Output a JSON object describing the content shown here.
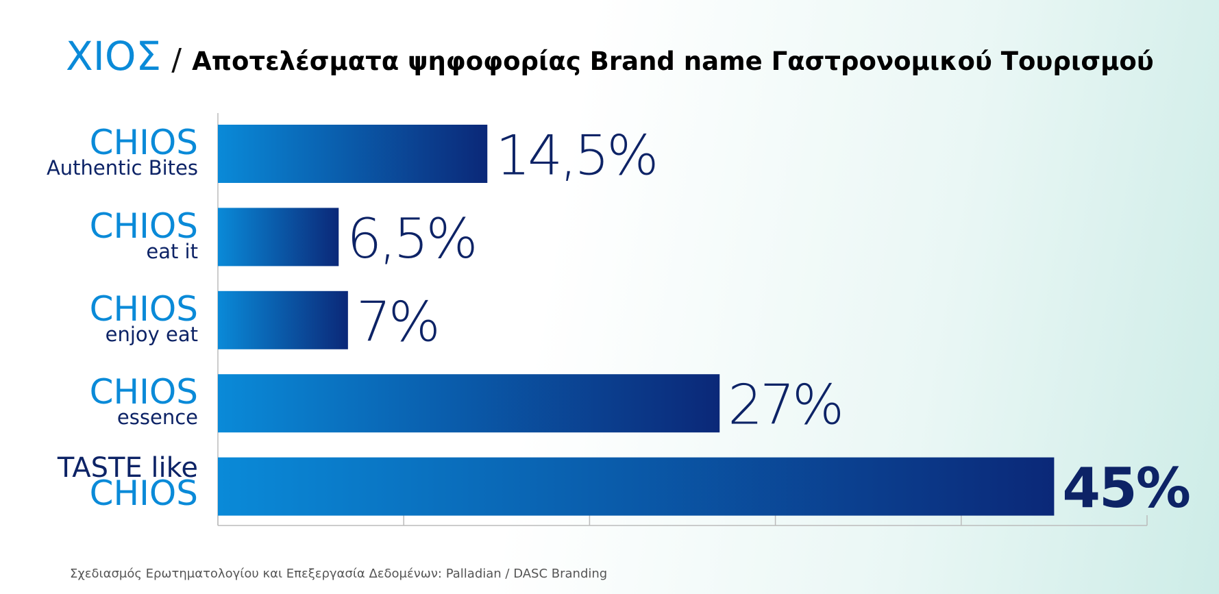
{
  "chart_data": {
    "type": "hbar",
    "title": [
      "ΧΙΟΣ",
      "/",
      "Αποτελέσματα ψηφοφορίας Brand name Γαστρονομικού Τουρισμού"
    ],
    "categories": [
      [
        "CHIOS",
        "Authentic Bites"
      ],
      [
        "CHIOS",
        "eat it"
      ],
      [
        "CHIOS",
        "enjoy eat"
      ],
      [
        "CHIOS",
        "essence"
      ],
      [
        "TASTE like",
        "CHIOS"
      ]
    ],
    "values": [
      14.5,
      6.5,
      7,
      27,
      45
    ],
    "value_labels": [
      "14,5%",
      "6,5%",
      "7%",
      "27%",
      "45%"
    ],
    "xlim": [
      0,
      50
    ],
    "xticks": [
      0,
      10,
      20,
      30,
      40,
      50
    ],
    "color": [
      "#0a8ad8",
      "#0b2878"
    ],
    "footnote": "Σχεδιασμός Ερωτηματολογίου και Επεξεργασία Δεδομένων: Palladian / DASC Branding"
  }
}
